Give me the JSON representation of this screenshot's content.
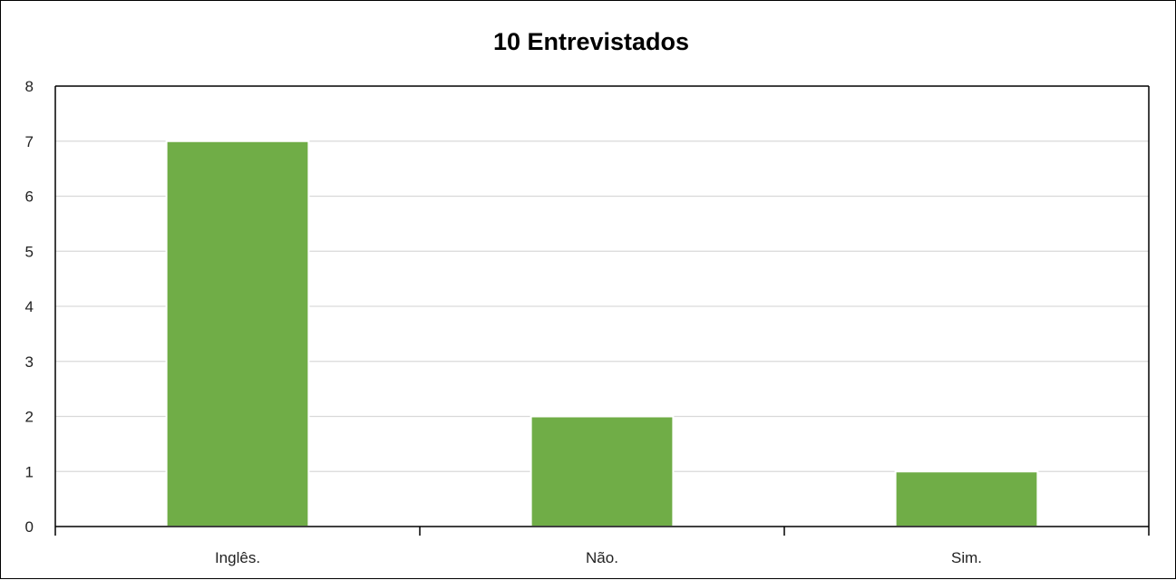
{
  "chart_data": {
    "type": "bar",
    "title": "10 Entrevistados",
    "xlabel": "",
    "ylabel": "",
    "categories": [
      "Inglês.",
      "Não.",
      "Sim."
    ],
    "values": [
      7,
      2,
      1
    ],
    "ylim": [
      0,
      8
    ],
    "yticks": [
      "0",
      "1",
      "2",
      "3",
      "4",
      "5",
      "6",
      "7",
      "8"
    ],
    "grid": true,
    "legend": "none",
    "colors": {
      "bar": "#70AD47",
      "grid": "#D9D9D9",
      "axis": "#000000"
    }
  }
}
